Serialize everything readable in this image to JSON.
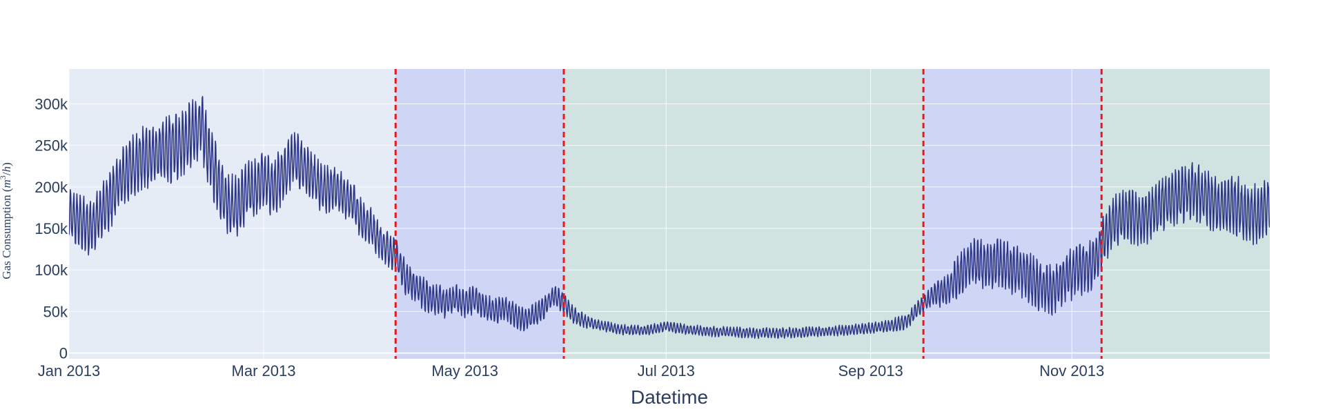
{
  "chart_data": {
    "type": "line",
    "title": "",
    "xlabel": "Datetime",
    "ylabel": "Gas Consumption (m³/h)",
    "ylabel_parts": {
      "text": "Gas Consumption (",
      "var": "m",
      "sup": "3",
      "tail": "/",
      "var2": "h",
      "close": ")"
    },
    "xlim": [
      "2013-01-01",
      "2013-12-31"
    ],
    "ylim": [
      -7000,
      342000
    ],
    "x_ticks": [
      {
        "date": "2013-01-01",
        "label": "Jan 2013"
      },
      {
        "date": "2013-03-01",
        "label": "Mar 2013"
      },
      {
        "date": "2013-05-01",
        "label": "May 2013"
      },
      {
        "date": "2013-07-01",
        "label": "Jul 2013"
      },
      {
        "date": "2013-09-01",
        "label": "Sep 2013"
      },
      {
        "date": "2013-11-01",
        "label": "Nov 2013"
      }
    ],
    "y_ticks": [
      {
        "value": 0,
        "label": "0"
      },
      {
        "value": 50000,
        "label": "50k"
      },
      {
        "value": 100000,
        "label": "100k"
      },
      {
        "value": 150000,
        "label": "150k"
      },
      {
        "value": 200000,
        "label": "200k"
      },
      {
        "value": 250000,
        "label": "250k"
      },
      {
        "value": 300000,
        "label": "300k"
      }
    ],
    "grid": true,
    "regions": [
      {
        "start": "2013-01-01",
        "end": "2013-04-10",
        "color": "#e5ecf6"
      },
      {
        "start": "2013-04-10",
        "end": "2013-06-00",
        "color": "#cfd5f5"
      },
      {
        "start": "2013-06-00",
        "end": "2013-09-17",
        "color": "#d0e3e0"
      },
      {
        "start": "2013-09-17",
        "end": "2013-11-10",
        "color": "#cfd5f5"
      },
      {
        "start": "2013-11-10",
        "end": "2013-12-31",
        "color": "#d0e3e0"
      }
    ],
    "regions_note": "",
    "vlines": [
      "2013-04-10",
      "2013-05-31",
      "2013-09-17",
      "2013-11-10"
    ],
    "vline_color": "#e41a1c",
    "series": [
      {
        "color": "#2e3687",
        "points": [
          [
            "2013-01-01",
            165000
          ],
          [
            "2013-01-04",
            160000
          ],
          [
            "2013-01-07",
            150000
          ],
          [
            "2013-01-10",
            165000
          ],
          [
            "2013-01-13",
            180000
          ],
          [
            "2013-01-16",
            205000
          ],
          [
            "2013-01-20",
            225000
          ],
          [
            "2013-01-24",
            235000
          ],
          [
            "2013-01-28",
            240000
          ],
          [
            "2013-02-01",
            245000
          ],
          [
            "2013-02-05",
            255000
          ],
          [
            "2013-02-08",
            265000
          ],
          [
            "2013-02-10",
            275000
          ],
          [
            "2013-02-12",
            245000
          ],
          [
            "2013-02-15",
            210000
          ],
          [
            "2013-02-18",
            180000
          ],
          [
            "2013-02-21",
            175000
          ],
          [
            "2013-02-24",
            195000
          ],
          [
            "2013-02-27",
            200000
          ],
          [
            "2013-03-01",
            210000
          ],
          [
            "2013-03-04",
            200000
          ],
          [
            "2013-03-07",
            215000
          ],
          [
            "2013-03-10",
            235000
          ],
          [
            "2013-03-13",
            225000
          ],
          [
            "2013-03-16",
            210000
          ],
          [
            "2013-03-19",
            195000
          ],
          [
            "2013-03-22",
            200000
          ],
          [
            "2013-03-25",
            190000
          ],
          [
            "2013-03-28",
            180000
          ],
          [
            "2013-03-31",
            160000
          ],
          [
            "2013-04-03",
            150000
          ],
          [
            "2013-04-06",
            130000
          ],
          [
            "2013-04-10",
            120000
          ],
          [
            "2013-04-13",
            90000
          ],
          [
            "2013-04-16",
            80000
          ],
          [
            "2013-04-19",
            70000
          ],
          [
            "2013-04-22",
            65000
          ],
          [
            "2013-04-25",
            60000
          ],
          [
            "2013-04-28",
            65000
          ],
          [
            "2013-05-01",
            60000
          ],
          [
            "2013-05-04",
            65000
          ],
          [
            "2013-05-07",
            55000
          ],
          [
            "2013-05-10",
            50000
          ],
          [
            "2013-05-13",
            55000
          ],
          [
            "2013-05-16",
            45000
          ],
          [
            "2013-05-19",
            40000
          ],
          [
            "2013-05-22",
            45000
          ],
          [
            "2013-05-25",
            55000
          ],
          [
            "2013-05-28",
            70000
          ],
          [
            "2013-05-31",
            60000
          ],
          [
            "2013-06-03",
            45000
          ],
          [
            "2013-06-07",
            38000
          ],
          [
            "2013-06-12",
            32000
          ],
          [
            "2013-06-18",
            28000
          ],
          [
            "2013-06-25",
            27000
          ],
          [
            "2013-07-01",
            32000
          ],
          [
            "2013-07-08",
            28000
          ],
          [
            "2013-07-15",
            26000
          ],
          [
            "2013-07-22",
            25000
          ],
          [
            "2013-07-29",
            24000
          ],
          [
            "2013-08-05",
            24000
          ],
          [
            "2013-08-12",
            25000
          ],
          [
            "2013-08-19",
            26000
          ],
          [
            "2013-08-26",
            28000
          ],
          [
            "2013-09-01",
            30000
          ],
          [
            "2013-09-06",
            32000
          ],
          [
            "2013-09-12",
            38000
          ],
          [
            "2013-09-17",
            60000
          ],
          [
            "2013-09-20",
            70000
          ],
          [
            "2013-09-24",
            75000
          ],
          [
            "2013-09-28",
            95000
          ],
          [
            "2013-10-02",
            110000
          ],
          [
            "2013-10-06",
            105000
          ],
          [
            "2013-10-10",
            110000
          ],
          [
            "2013-10-14",
            100000
          ],
          [
            "2013-10-18",
            95000
          ],
          [
            "2013-10-22",
            80000
          ],
          [
            "2013-10-26",
            75000
          ],
          [
            "2013-10-30",
            90000
          ],
          [
            "2013-11-03",
            100000
          ],
          [
            "2013-11-07",
            105000
          ],
          [
            "2013-11-10",
            130000
          ],
          [
            "2013-11-14",
            160000
          ],
          [
            "2013-11-18",
            165000
          ],
          [
            "2013-11-22",
            160000
          ],
          [
            "2013-11-26",
            170000
          ],
          [
            "2013-11-30",
            185000
          ],
          [
            "2013-12-04",
            190000
          ],
          [
            "2013-12-08",
            195000
          ],
          [
            "2013-12-12",
            185000
          ],
          [
            "2013-12-16",
            175000
          ],
          [
            "2013-12-20",
            180000
          ],
          [
            "2013-12-24",
            170000
          ],
          [
            "2013-12-28",
            165000
          ],
          [
            "2013-12-31",
            180000
          ]
        ],
        "noise": [
          [
            "2013-01-01",
            30000
          ],
          [
            "2013-02-01",
            40000
          ],
          [
            "2013-03-01",
            35000
          ],
          [
            "2013-04-10",
            20000
          ],
          [
            "2013-05-31",
            12000
          ],
          [
            "2013-06-10",
            6000
          ],
          [
            "2013-08-31",
            6000
          ],
          [
            "2013-09-17",
            10000
          ],
          [
            "2013-10-01",
            28000
          ],
          [
            "2013-11-10",
            30000
          ],
          [
            "2013-12-31",
            35000
          ]
        ]
      }
    ]
  }
}
